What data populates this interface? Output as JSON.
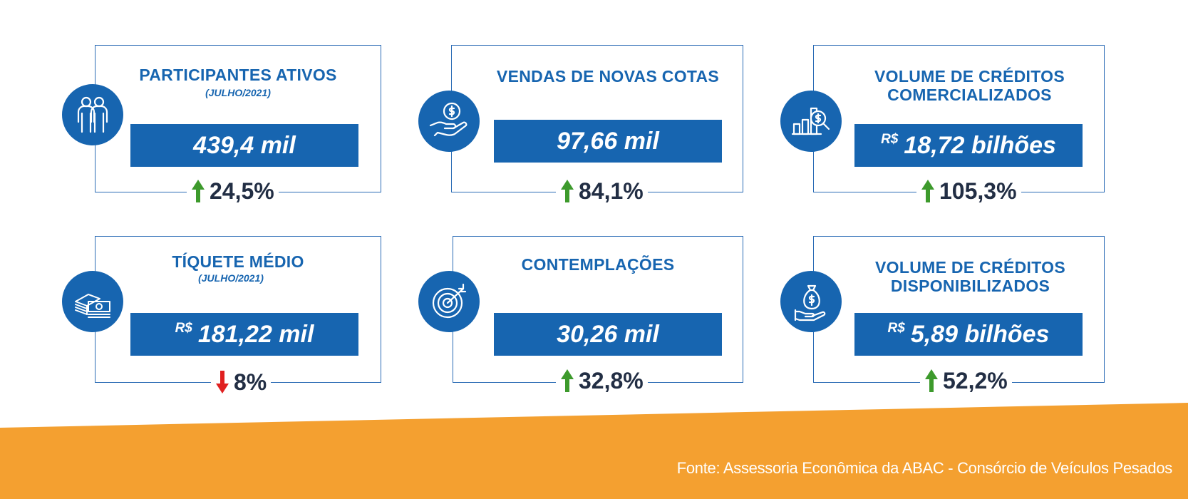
{
  "cards": [
    {
      "title_lines": [
        "PARTICIPANTES ATIVOS"
      ],
      "subtitle": "(JULHO/2021)",
      "currency": "",
      "value": "439,4 mil",
      "delta": "24,5%",
      "direction": "up",
      "icon": "people-icon"
    },
    {
      "title_lines": [
        "VENDAS DE NOVAS COTAS"
      ],
      "subtitle": "",
      "currency": "",
      "value": "97,66 mil",
      "delta": "84,1%",
      "direction": "up",
      "icon": "hand-coin-icon"
    },
    {
      "title_lines": [
        "VOLUME DE CRÉDITOS",
        "COMERCIALIZADOS"
      ],
      "subtitle": "",
      "currency": "R$",
      "value": "18,72 bilhões",
      "delta": "105,3%",
      "direction": "up",
      "icon": "bar-chart-magnifier-icon"
    },
    {
      "title_lines": [
        "TÍQUETE MÉDIO"
      ],
      "subtitle": "(JULHO/2021)",
      "currency": "R$",
      "value": "181,22 mil",
      "delta": "8%",
      "direction": "down",
      "icon": "banknotes-icon"
    },
    {
      "title_lines": [
        "CONTEMPLAÇÕES"
      ],
      "subtitle": "",
      "currency": "",
      "value": "30,26 mil",
      "delta": "32,8%",
      "direction": "up",
      "icon": "target-icon"
    },
    {
      "title_lines": [
        "VOLUME DE CRÉDITOS",
        "DISPONIBILIZADOS"
      ],
      "subtitle": "",
      "currency": "R$",
      "value": "5,89 bilhões",
      "delta": "52,2%",
      "direction": "up",
      "icon": "money-bag-hand-icon"
    }
  ],
  "colors": {
    "primary": "#1765b0",
    "up": "#3d9a2c",
    "down": "#e02020",
    "footer": "#f4a030",
    "delta_text": "#222e44"
  },
  "footer": {
    "source": "Fonte: Assessoria Econômica da ABAC - Consórcio de Veículos Pesados"
  }
}
